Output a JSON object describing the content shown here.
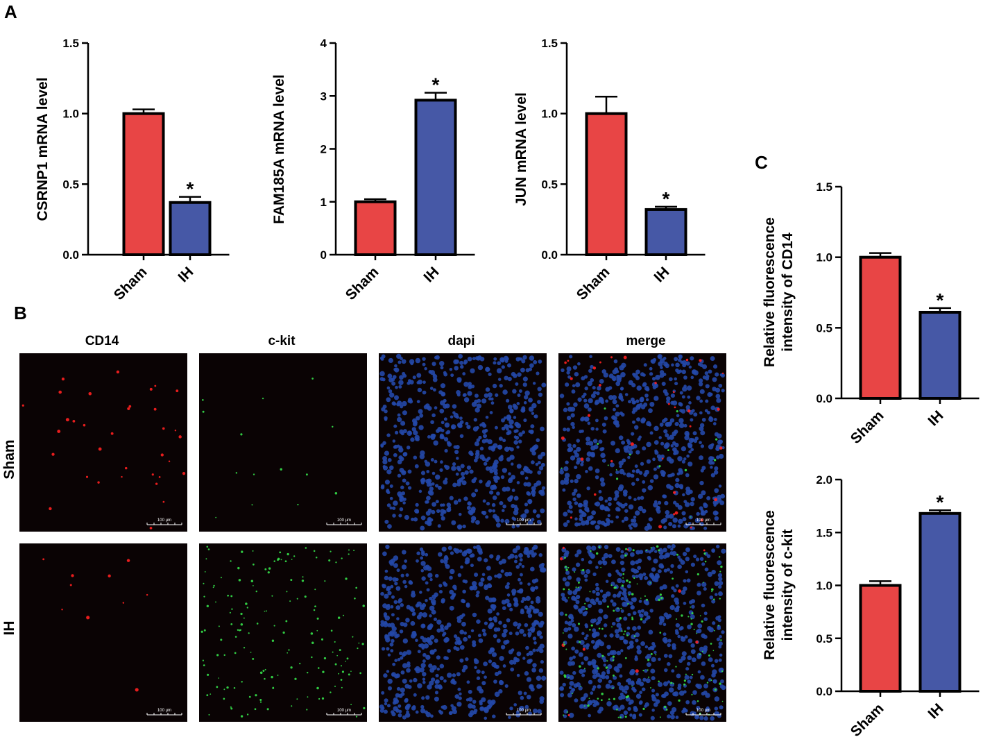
{
  "panels": {
    "a": "A",
    "b": "B",
    "c": "C"
  },
  "colors": {
    "sham": "#e84545",
    "ih": "#4658a6",
    "axis": "#000000"
  },
  "chart_data": [
    {
      "id": "csrnp1",
      "panel": "A",
      "type": "bar",
      "categories": [
        "Sham",
        "IH"
      ],
      "values": [
        1.0,
        0.37
      ],
      "errors": [
        0.03,
        0.04
      ],
      "significance": [
        "",
        "*"
      ],
      "ylabel": "CSRNP1 mRNA level",
      "ylim": [
        0,
        1.5
      ],
      "yticks": [
        0.0,
        0.5,
        1.0,
        1.5
      ],
      "ytick_labels": [
        "0.0",
        "0.5",
        "1.0",
        "1.5"
      ]
    },
    {
      "id": "fam185a",
      "panel": "A",
      "type": "bar",
      "categories": [
        "Sham",
        "IH"
      ],
      "values": [
        1.0,
        2.92
      ],
      "errors": [
        0.05,
        0.14
      ],
      "significance": [
        "",
        "*"
      ],
      "ylabel": "FAM185A mRNA level",
      "ylim": [
        0,
        4
      ],
      "yticks": [
        0,
        1,
        2,
        3,
        4
      ],
      "ytick_labels": [
        "0",
        "1",
        "2",
        "3",
        "4"
      ]
    },
    {
      "id": "jun",
      "panel": "A",
      "type": "bar",
      "categories": [
        "Sham",
        "IH"
      ],
      "values": [
        1.0,
        0.32
      ],
      "errors": [
        0.12,
        0.02
      ],
      "significance": [
        "",
        "*"
      ],
      "ylabel": "JUN mRNA level",
      "ylim": [
        0,
        1.5
      ],
      "yticks": [
        0.0,
        0.5,
        1.0,
        1.5
      ],
      "ytick_labels": [
        "0.0",
        "0.5",
        "1.0",
        "1.5"
      ]
    },
    {
      "id": "cd14",
      "panel": "C",
      "type": "bar",
      "categories": [
        "Sham",
        "IH"
      ],
      "values": [
        1.0,
        0.61
      ],
      "errors": [
        0.03,
        0.03
      ],
      "significance": [
        "",
        "*"
      ],
      "ylabel": [
        "Relative fluorescence",
        "intensity of CD14"
      ],
      "ylim": [
        0,
        1.5
      ],
      "yticks": [
        0.0,
        0.5,
        1.0,
        1.5
      ],
      "ytick_labels": [
        "0.0",
        "0.5",
        "1.0",
        "1.5"
      ]
    },
    {
      "id": "ckit",
      "panel": "C",
      "type": "bar",
      "categories": [
        "Sham",
        "IH"
      ],
      "values": [
        1.0,
        1.68
      ],
      "errors": [
        0.04,
        0.03
      ],
      "significance": [
        "",
        "*"
      ],
      "ylabel": [
        "Relative fluorescence",
        "intensity of c-kit"
      ],
      "ylim": [
        0,
        2.0
      ],
      "yticks": [
        0.0,
        0.5,
        1.0,
        1.5,
        2.0
      ],
      "ytick_labels": [
        "0.0",
        "0.5",
        "1.0",
        "1.5",
        "2.0"
      ]
    }
  ],
  "micrographs": {
    "columns": [
      "CD14",
      "c-kit",
      "dapi",
      "merge"
    ],
    "rows": [
      "Sham",
      "IH"
    ],
    "scale_bar": "100 µm",
    "channel_colors": {
      "CD14": "#ff2020",
      "c-kit": "#35e04a",
      "dapi": "#2448a8"
    }
  }
}
